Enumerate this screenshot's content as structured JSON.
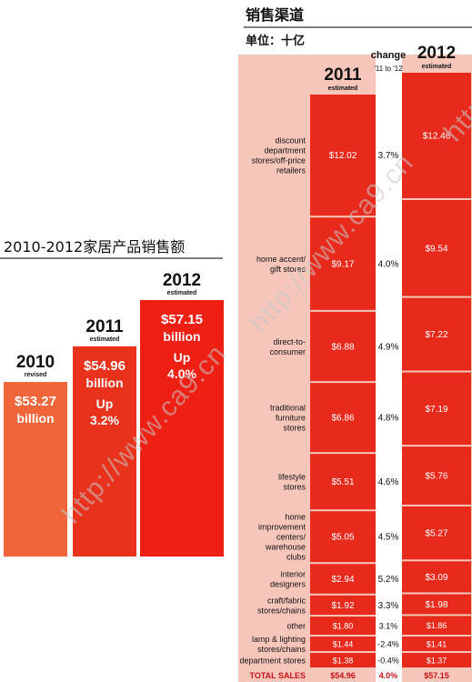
{
  "colors": {
    "bar_2010": "#f0663a",
    "bar_2011": "#e8321c",
    "bar_2012": "#ee1f13",
    "right_bar": "#e82a1d",
    "right_bg": "#f6c6bb",
    "text_dark": "#111111",
    "text_white": "#ffffff"
  },
  "watermark": "http://www.ca9.cn",
  "left_panel": {
    "title": "2010-2012家居产品销售额",
    "columns": [
      {
        "year": "2010",
        "note": "revised",
        "value_line": "$53.27",
        "unit_line": "billion",
        "change_line1": "",
        "change_line2": ""
      },
      {
        "year": "2011",
        "note": "estimated",
        "value_line": "$54.96",
        "unit_line": "billion",
        "change_line1": "Up",
        "change_line2": "3.2%"
      },
      {
        "year": "2012",
        "note": "estimated",
        "value_line": "$57.15",
        "unit_line": "billion",
        "change_line1": "Up",
        "change_line2": "4.0%"
      }
    ]
  },
  "right_panel": {
    "title": "销售渠道",
    "unit": "单位：十亿",
    "col_2011": {
      "year": "2011",
      "note": "estimated"
    },
    "col_change": {
      "label": "change",
      "sub": "'11 to '12"
    },
    "col_2012": {
      "year": "2012",
      "note": "estimated"
    },
    "total": {
      "label": "TOTAL SALES",
      "v2011": "$54.96",
      "change": "4.0%",
      "v2012": "$57.15"
    }
  },
  "chart_data": [
    {
      "type": "bar",
      "title": "2010-2012家居产品销售额",
      "categories": [
        "2010",
        "2011",
        "2012"
      ],
      "category_notes": [
        "revised",
        "estimated",
        "estimated"
      ],
      "values": [
        53.27,
        54.96,
        57.15
      ],
      "value_labels": [
        "$53.27 billion",
        "$54.96 billion",
        "$57.15 billion"
      ],
      "annotations": [
        "",
        "Up 3.2%",
        "Up 4.0%"
      ]
    },
    {
      "type": "table",
      "title": "销售渠道",
      "subtitle": "单位：十亿",
      "columns": [
        "2011 estimated",
        "change '11 to '12",
        "2012 estimated"
      ],
      "rows": [
        {
          "channel": "discount department stores/off-price retailers",
          "v2011": 12.02,
          "l2011": "$12.02",
          "change": "3.7%",
          "v2012": 12.46,
          "l2012": "$12.46"
        },
        {
          "channel": "home accent/ gift stores",
          "v2011": 9.17,
          "l2011": "$9.17",
          "change": "4.0%",
          "v2012": 9.54,
          "l2012": "$9.54"
        },
        {
          "channel": "direct-to- consumer",
          "v2011": 6.88,
          "l2011": "$6.88",
          "change": "4.9%",
          "v2012": 7.22,
          "l2012": "$7.22"
        },
        {
          "channel": "traditional furniture stores",
          "v2011": 6.86,
          "l2011": "$6.86",
          "change": "4.8%",
          "v2012": 7.19,
          "l2012": "$7.19"
        },
        {
          "channel": "lifestyle stores",
          "v2011": 5.51,
          "l2011": "$5.51",
          "change": "4.6%",
          "v2012": 5.76,
          "l2012": "$5.76"
        },
        {
          "channel": "home improvement centers/ warehouse clubs",
          "v2011": 5.05,
          "l2011": "$5.05",
          "change": "4.5%",
          "v2012": 5.27,
          "l2012": "$5.27"
        },
        {
          "channel": "interior designers",
          "v2011": 2.94,
          "l2011": "$2.94",
          "change": "5.2%",
          "v2012": 3.09,
          "l2012": "$3.09"
        },
        {
          "channel": "craft/fabric stores/chains",
          "v2011": 1.92,
          "l2011": "$1.92",
          "change": "3.3%",
          "v2012": 1.98,
          "l2012": "$1.98"
        },
        {
          "channel": "other",
          "v2011": 1.8,
          "l2011": "$1.80",
          "change": "3.1%",
          "v2012": 1.86,
          "l2012": "$1.86"
        },
        {
          "channel": "lamp & lighting stores/chains",
          "v2011": 1.44,
          "l2011": "$1.44",
          "change": "-2.4%",
          "v2012": 1.41,
          "l2012": "$1.41"
        },
        {
          "channel": "department stores",
          "v2011": 1.38,
          "l2011": "$1.38",
          "change": "-0.4%",
          "v2012": 1.37,
          "l2012": "$1.37"
        }
      ],
      "total": {
        "label": "TOTAL SALES",
        "v2011": 54.96,
        "l2011": "$54.96",
        "change": "4.0%",
        "v2012": 57.15,
        "l2012": "$57.15"
      }
    }
  ]
}
